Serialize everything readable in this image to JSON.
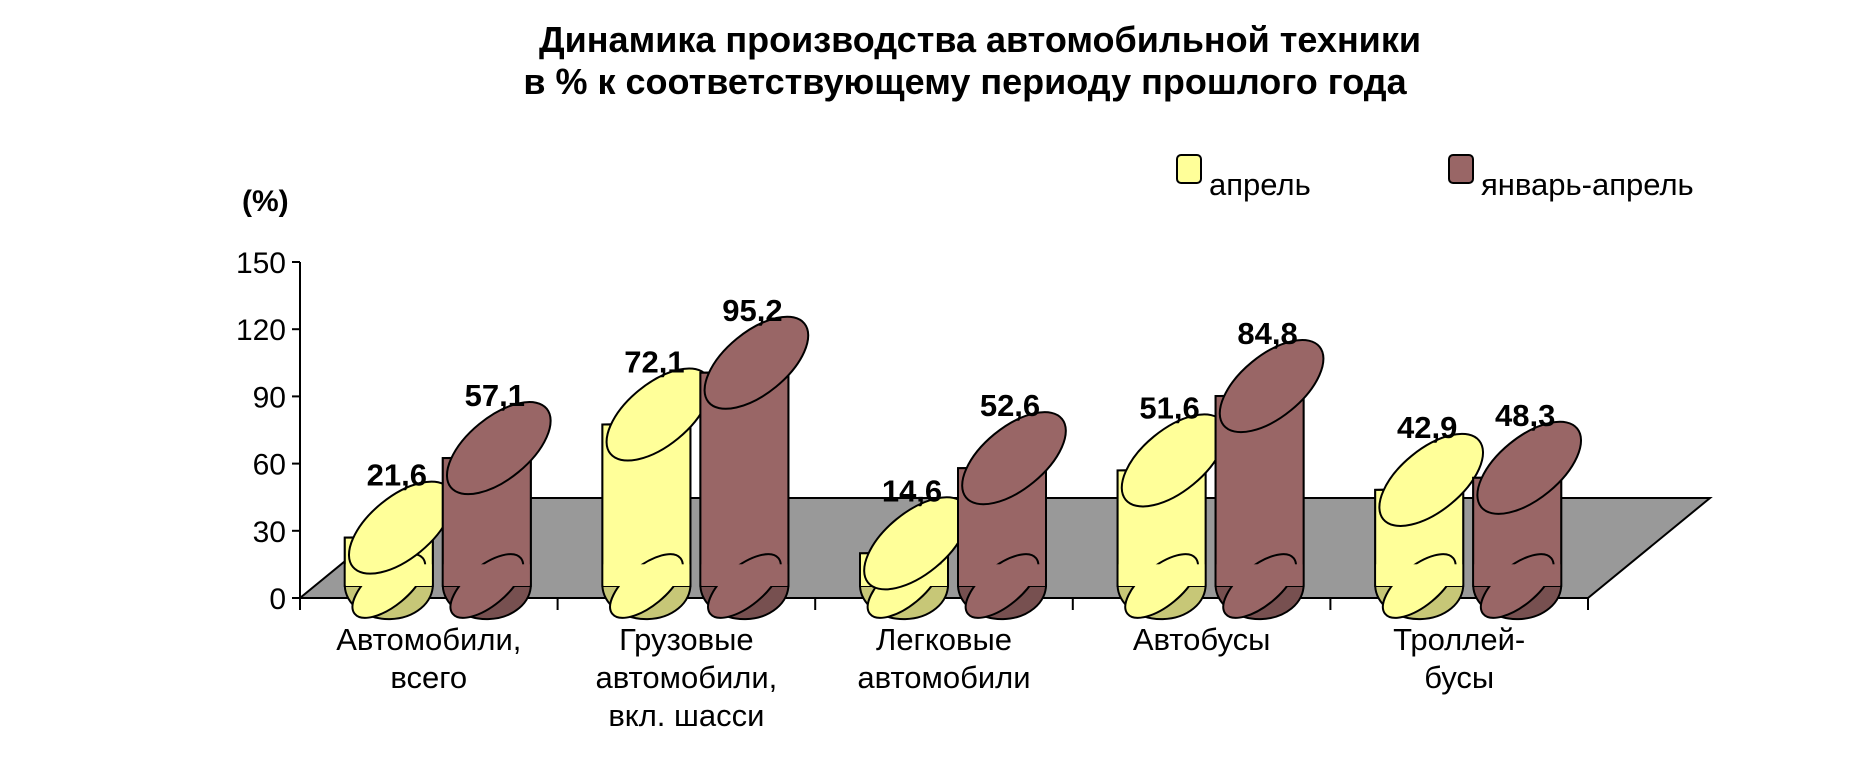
{
  "chart_data": {
    "type": "bar",
    "title": [
      "Динамика производства автомобильной техники",
      "в % к соответствующему  периоду прошлого года"
    ],
    "ylabel": "(%)",
    "ylim": [
      0,
      150
    ],
    "yticks": [
      "150",
      "120",
      "90",
      "60",
      "30",
      "0"
    ],
    "categories": [
      [
        "Автомобили,",
        "всего"
      ],
      [
        "Грузовые",
        "автомобили,",
        "вкл. шасси"
      ],
      [
        "Легковые",
        "автомобили"
      ],
      [
        "Автобусы"
      ],
      [
        "Троллей-",
        "бусы"
      ]
    ],
    "series": [
      {
        "name": "апрель",
        "values": [
          21.6,
          72.1,
          14.6,
          51.6,
          42.9
        ],
        "labels": [
          "21,6",
          "72,1",
          "14,6",
          "51,6",
          "42,9"
        ],
        "color": "#ffff99"
      },
      {
        "name": "январь-апрель",
        "values": [
          57.1,
          95.2,
          52.6,
          84.8,
          48.3
        ],
        "labels": [
          "57,1",
          "95,2",
          "52,6",
          "84,8",
          "48,3"
        ],
        "color": "#996666"
      }
    ],
    "legend_position": "top-right",
    "floor_color": "#999999",
    "style": "3d-cylinder"
  }
}
